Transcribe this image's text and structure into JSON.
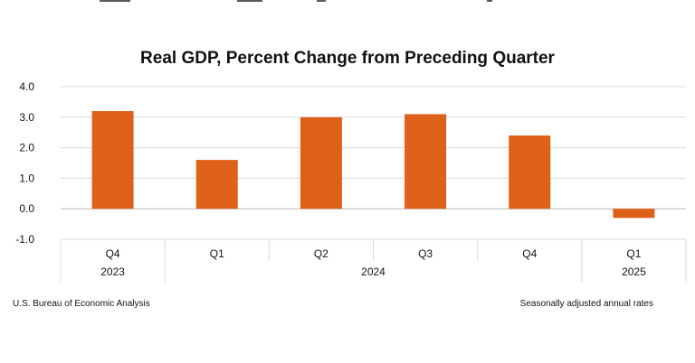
{
  "chart_data": {
    "type": "bar",
    "title": "Real GDP, Percent Change from Preceding Quarter",
    "categories": [
      "Q4",
      "Q1",
      "Q2",
      "Q3",
      "Q4",
      "Q1"
    ],
    "years": [
      {
        "label": "2023",
        "span": 1
      },
      {
        "label": "2024",
        "span": 4
      },
      {
        "label": "2025",
        "span": 1
      }
    ],
    "values": [
      3.2,
      1.6,
      3.0,
      3.1,
      2.4,
      -0.3
    ],
    "ylim": [
      -1.0,
      4.0
    ],
    "yticks": [
      "4.0",
      "3.0",
      "2.0",
      "1.0",
      "0.0",
      "-1.0"
    ],
    "ytick_values": [
      4.0,
      3.0,
      2.0,
      1.0,
      0.0,
      -1.0
    ],
    "bar_color": "#dd6119",
    "grid": true,
    "xlabel": "",
    "ylabel": ""
  },
  "footer": {
    "source": "U.S. Bureau of Economic Analysis",
    "note": "Seasonally adjusted annual rates"
  }
}
